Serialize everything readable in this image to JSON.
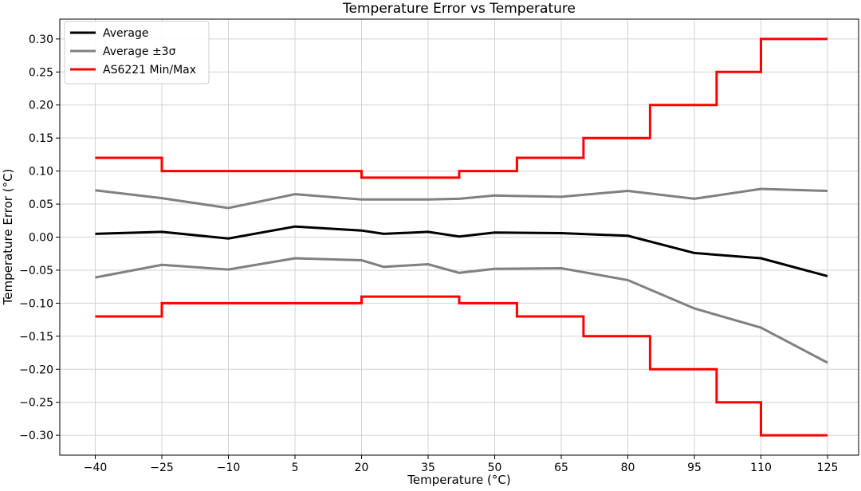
{
  "chart_data": {
    "type": "line",
    "title": "Temperature Error vs Temperature",
    "xlabel": "Temperature (°C)",
    "ylabel": "Temperature Error  (°C)",
    "xlim": [
      -48,
      132
    ],
    "ylim": [
      -0.33,
      0.33
    ],
    "x_ticks": [
      -40,
      -25,
      -10,
      5,
      20,
      35,
      50,
      65,
      80,
      95,
      110,
      125
    ],
    "y_ticks": [
      -0.3,
      -0.25,
      -0.2,
      -0.15,
      -0.1,
      -0.05,
      0.0,
      0.05,
      0.1,
      0.15,
      0.2,
      0.25,
      0.3
    ],
    "grid": true,
    "legend_position": "top-left",
    "series": [
      {
        "name": "Average",
        "color": "#000000",
        "style": "line",
        "x": [
          -40,
          -25,
          -10,
          5,
          20,
          25,
          35,
          42,
          50,
          65,
          80,
          95,
          110,
          125
        ],
        "y": [
          0.005,
          0.008,
          -0.002,
          0.016,
          0.01,
          0.005,
          0.008,
          0.001,
          0.007,
          0.006,
          0.002,
          -0.024,
          -0.032,
          -0.059
        ]
      },
      {
        "name": "Average  ±3σ",
        "color": "#808080",
        "style": "line",
        "x": [
          -40,
          -25,
          -10,
          5,
          20,
          25,
          35,
          42,
          50,
          65,
          80,
          95,
          110,
          125
        ],
        "y": [
          0.071,
          0.059,
          0.044,
          0.065,
          0.057,
          0.057,
          0.057,
          0.058,
          0.063,
          0.061,
          0.07,
          0.058,
          0.073,
          0.07
        ]
      },
      {
        "name": "",
        "color": "#808080",
        "style": "line",
        "x": [
          -40,
          -25,
          -10,
          5,
          20,
          25,
          35,
          42,
          50,
          65,
          80,
          95,
          110,
          125
        ],
        "y": [
          -0.061,
          -0.042,
          -0.049,
          -0.032,
          -0.035,
          -0.045,
          -0.041,
          -0.054,
          -0.048,
          -0.047,
          -0.065,
          -0.108,
          -0.137,
          -0.19
        ]
      },
      {
        "name": "AS6221 Min/Max",
        "color": "#ff0000",
        "style": "step",
        "x": [
          -40,
          -25,
          -25,
          20,
          20,
          42,
          42,
          55,
          55,
          70,
          70,
          85,
          85,
          100,
          100,
          110,
          110,
          125
        ],
        "y": [
          0.12,
          0.12,
          0.1,
          0.1,
          0.09,
          0.09,
          0.1,
          0.1,
          0.12,
          0.12,
          0.15,
          0.15,
          0.2,
          0.2,
          0.25,
          0.25,
          0.3,
          0.3
        ]
      },
      {
        "name": "",
        "color": "#ff0000",
        "style": "step",
        "x": [
          -40,
          -25,
          -25,
          20,
          20,
          42,
          42,
          55,
          55,
          70,
          70,
          85,
          85,
          100,
          100,
          110,
          110,
          125
        ],
        "y": [
          -0.12,
          -0.12,
          -0.1,
          -0.1,
          -0.09,
          -0.09,
          -0.1,
          -0.1,
          -0.12,
          -0.12,
          -0.15,
          -0.15,
          -0.2,
          -0.2,
          -0.25,
          -0.25,
          -0.3,
          -0.3
        ]
      }
    ]
  }
}
